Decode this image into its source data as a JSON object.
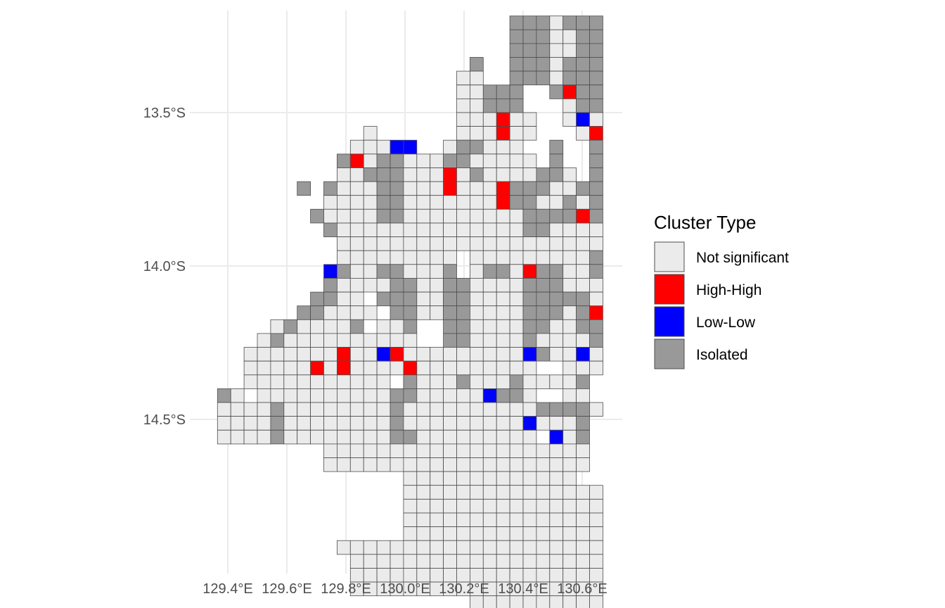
{
  "map": {
    "x_axis": {
      "ticks": [
        {
          "value": 129.4,
          "label": "129.4°E"
        },
        {
          "value": 129.6,
          "label": "129.6°E"
        },
        {
          "value": 129.8,
          "label": "129.8°E"
        },
        {
          "value": 130.0,
          "label": "130.0°E"
        },
        {
          "value": 130.2,
          "label": "130.2°E"
        },
        {
          "value": 130.4,
          "label": "130.4°E"
        },
        {
          "value": 130.6,
          "label": "130.6°E"
        }
      ]
    },
    "y_axis": {
      "ticks": [
        {
          "value": -13.5,
          "label": "13.5°S"
        },
        {
          "value": -14.0,
          "label": "14.0°S"
        },
        {
          "value": -14.5,
          "label": "14.5°S"
        }
      ]
    },
    "grid": true,
    "cell_size_deg": 0.045,
    "grid_origin": {
      "lon": 129.365,
      "lat": -13.185
    },
    "legend": {
      "title": "Cluster Type",
      "position": "right",
      "items": [
        {
          "code": "N",
          "label": "Not significant",
          "color": "#ebebeb"
        },
        {
          "code": "H",
          "label": "High-High",
          "color": "#ff0000"
        },
        {
          "code": "L",
          "label": "Low-Low",
          "color": "#0000ff"
        },
        {
          "code": "I",
          "label": "Isolated",
          "color": "#999999"
        }
      ]
    },
    "cell_border_color": "#4d4d4d",
    "rows": [
      "......................IIINIII",
      "......................IIINNII",
      "......................IIINNII",
      "...................I..IIINIII",
      "..................NN..IIINIII",
      "..................NNIII..IHII",
      "..................NNIII...NII",
      "..................NNNHNN..NLN",
      "...........N......NNNHNN...NH",
      "..........NNNLL..NIINNN..I..I",
      ".........IHNIINNNIINNNNN.I..I",
      ".........NNLIINNNHNINNNNIIN.I",
      "........INNNIINNNHNNNHIIINNII",
      "........NNNNIINNNNNNNHIINNINI",
      ".......INNNNIINNNNNNNNNIIIIHI",
      "........INNNNNNNNNNNNNNIINNNN",
      ".........NNNNNNNNNNNNNNNNNNNN",
      ".........NNNNNNNNN.NNNNNNNNNI",
      "........LINNIINNNI.NIINHIINNI",
      "........INNNNIINNIINNNNIIINNN",
      ".......IINN.IIINNIINNNNIIIIIN",
      "......IINNNN.IINNIINNNNIIINIH",
      "....NINNNNI.NNI..IINNNNIINNII",
      "...NINNNNNNNNNN..IINNNNINNNNI",
      "..NNNNNNNHNNLHNNNNNNNNNLINNLN",
      "..NNNNNHNHNNNNHNNNNNNNNN..NNN",
      "..NNNNNNNNNNN.INNNINNNINNNNI.",
      "IN.NNNNNNNNNNIINNNNNLIIN..NN.",
      "NNNNINNNNNNNNINNNNNNNNNNIIIIN",
      "NNNNINNNNNNNNINNNNNNNNNLNNNI.",
      "NNNNINNNNNNNNIINNNNNNNNN.LNI.",
      "........NNNNNNNNNNNNNNNNNNNN.",
      "........NNNNNNNNNNNNNNNNNNNN.",
      "..............NNNNNNNNNNNNN..",
      "..............NNNNNNNNNNNNNNN",
      "..............NNNNNNNNNNNNNNN",
      "..............NNNNNNNNNNNNNNN",
      "..............NNNNNNNNNNNNNNN",
      ".........NNNNNNNNNNNNNNNNNNNN",
      "..........NNNNNNNNNNNNNNNNNNN",
      "..........NNNNNNNNNNNNNNNNNNN",
      "..........NNNNNNNNNNNNNNNNNNN",
      "...................NNNNNNNNNN"
    ],
    "overrides": [
      {
        "r": 11,
        "c": 11,
        "code": "I"
      },
      {
        "r": 11,
        "c": 12,
        "code": "I"
      },
      {
        "r": 12,
        "c": 6,
        "code": "I"
      }
    ]
  }
}
